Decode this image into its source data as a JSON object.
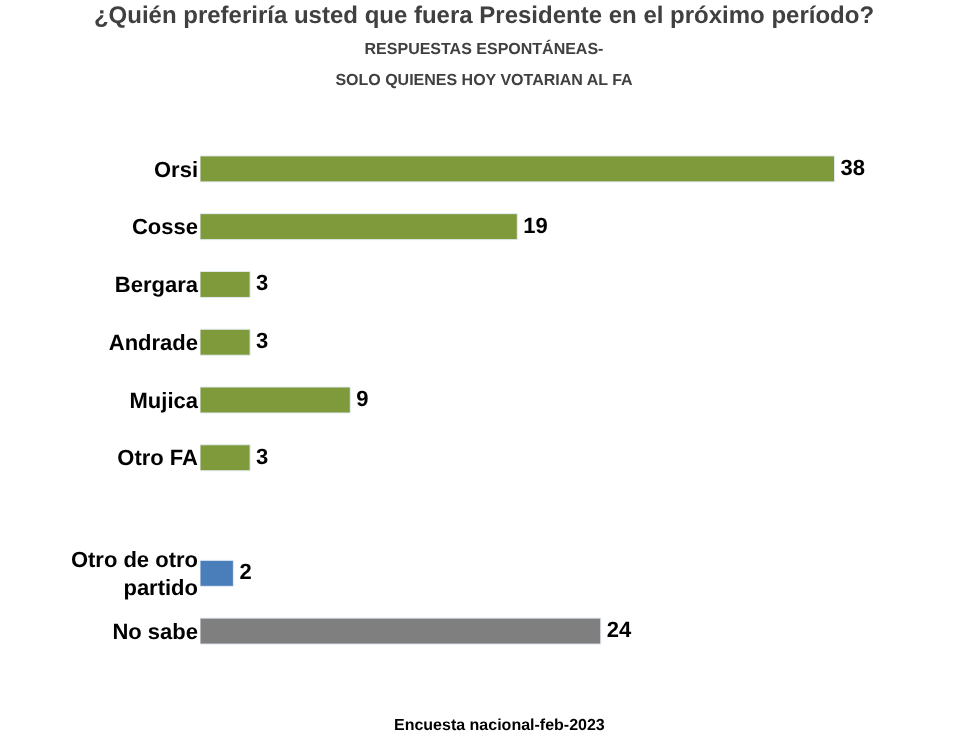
{
  "chart_data": {
    "type": "bar",
    "orientation": "horizontal",
    "title": "¿Quién preferiría usted que fuera Presidente en el próximo período?",
    "subtitle": "RESPUESTAS ESPONTÁNEAS-\nSOLO QUIENES HOY VOTARIAN AL FA",
    "categories": [
      "Orsi",
      "Cosse",
      "Bergara",
      "Andrade",
      "Mujica",
      "Otro FA",
      null,
      "Otro de otro partido",
      "No sabe"
    ],
    "values": [
      38,
      19,
      3,
      3,
      9,
      3,
      null,
      2,
      24
    ],
    "colors": [
      "#7f9a3a",
      "#7f9a3a",
      "#7f9a3a",
      "#7f9a3a",
      "#7f9a3a",
      "#7f9a3a",
      "#7f9a3a",
      "#4a7ebb",
      "#7f7f7f"
    ],
    "data_labels": true,
    "legend": false,
    "annotations": [
      "Encuesta nacional-feb-2023"
    ]
  }
}
